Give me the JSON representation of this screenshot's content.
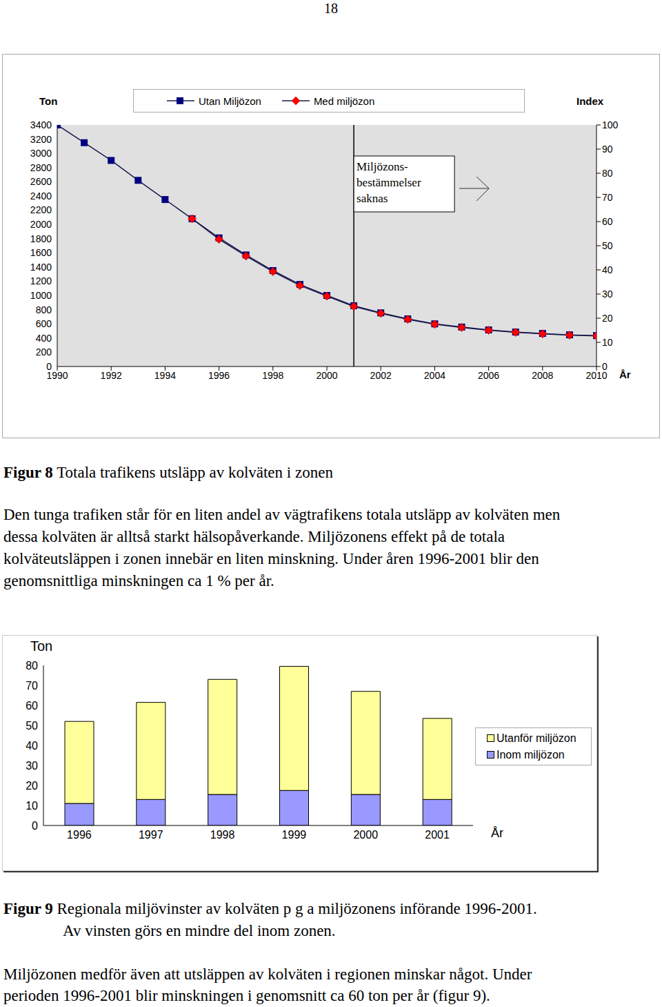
{
  "page_number": "18",
  "chart_data": [
    {
      "type": "line",
      "y_label": "Ton",
      "y2_label": "Index",
      "x_label": "År",
      "x": [
        1990,
        1991,
        1992,
        1993,
        1994,
        1995,
        1996,
        1997,
        1998,
        1999,
        2000,
        2001,
        2002,
        2003,
        2004,
        2005,
        2006,
        2007,
        2008,
        2009,
        2010
      ],
      "series": [
        {
          "name": "Utan Miljözon",
          "color": "#000080",
          "marker": "square",
          "values": [
            3400,
            3150,
            2900,
            2620,
            2350,
            2080,
            1810,
            1570,
            1350,
            1155,
            1000,
            855,
            755,
            670,
            600,
            555,
            515,
            485,
            465,
            445,
            435
          ]
        },
        {
          "name": "Med miljözon",
          "color": "#ff0000",
          "marker": "diamond",
          "values": [
            null,
            null,
            null,
            null,
            null,
            2080,
            1790,
            1555,
            1335,
            1140,
            990,
            845,
            748,
            663,
            594,
            550,
            510,
            480,
            460,
            441,
            431
          ]
        }
      ],
      "xlim": [
        1990,
        2010
      ],
      "xticks": [
        1990,
        1992,
        1994,
        1996,
        1998,
        2000,
        2002,
        2004,
        2006,
        2008,
        2010
      ],
      "ylim": [
        0,
        3400
      ],
      "yticks": [
        0,
        200,
        400,
        600,
        800,
        1000,
        1200,
        1400,
        1600,
        1800,
        2000,
        2200,
        2400,
        2600,
        2800,
        3000,
        3200,
        3400
      ],
      "y2lim": [
        0,
        100
      ],
      "y2ticks": [
        0,
        10,
        20,
        30,
        40,
        50,
        60,
        70,
        80,
        90,
        100
      ],
      "grid": false,
      "legend": "top",
      "annotation": {
        "x": 2001,
        "text": [
          "Miljözons-",
          "bestämmelser",
          "saknas"
        ]
      }
    },
    {
      "type": "bar",
      "stacked": true,
      "y_label": "Ton",
      "x_label": "År",
      "categories": [
        "1996",
        "1997",
        "1998",
        "1999",
        "2000",
        "2001"
      ],
      "series": [
        {
          "name": "Inom miljözon",
          "color": "#9999ff",
          "values": [
            11,
            13,
            15.5,
            17.5,
            15.5,
            13
          ]
        },
        {
          "name": "Utanför miljözon",
          "color": "#ffff99",
          "values": [
            41,
            48.5,
            57.5,
            62,
            51.5,
            40.5
          ]
        }
      ],
      "ylim": [
        0,
        80
      ],
      "yticks": [
        0,
        10,
        20,
        30,
        40,
        50,
        60,
        70,
        80
      ],
      "grid": false,
      "legend": "right"
    }
  ],
  "figure_8": {
    "label": "Figur 8",
    "caption": "Totala trafikens utsläpp av kolväten i zonen"
  },
  "paragraph_1": [
    "Den tunga trafiken står för en liten andel av vägtrafikens totala utsläpp av kolväten men",
    "dessa kolväten är alltså starkt hälsopåverkande. Miljözonens effekt på de totala",
    "kolväteutsläppen i zonen innebär en liten minskning. Under åren 1996-2001 blir den",
    "genomsnittliga minskningen ca 1 % per år."
  ],
  "figure_9": {
    "label": "Figur 9",
    "caption": [
      "Regionala miljövinster av kolväten p g a miljözonens införande 1996-2001.",
      "Av vinsten görs en mindre del inom zonen."
    ]
  },
  "paragraph_2": [
    "Miljözonen medför även att utsläppen av kolväten i regionen minskar något. Under",
    "perioden 1996-2001 blir minskningen i genomsnitt ca 60 ton per år (figur 9)."
  ]
}
